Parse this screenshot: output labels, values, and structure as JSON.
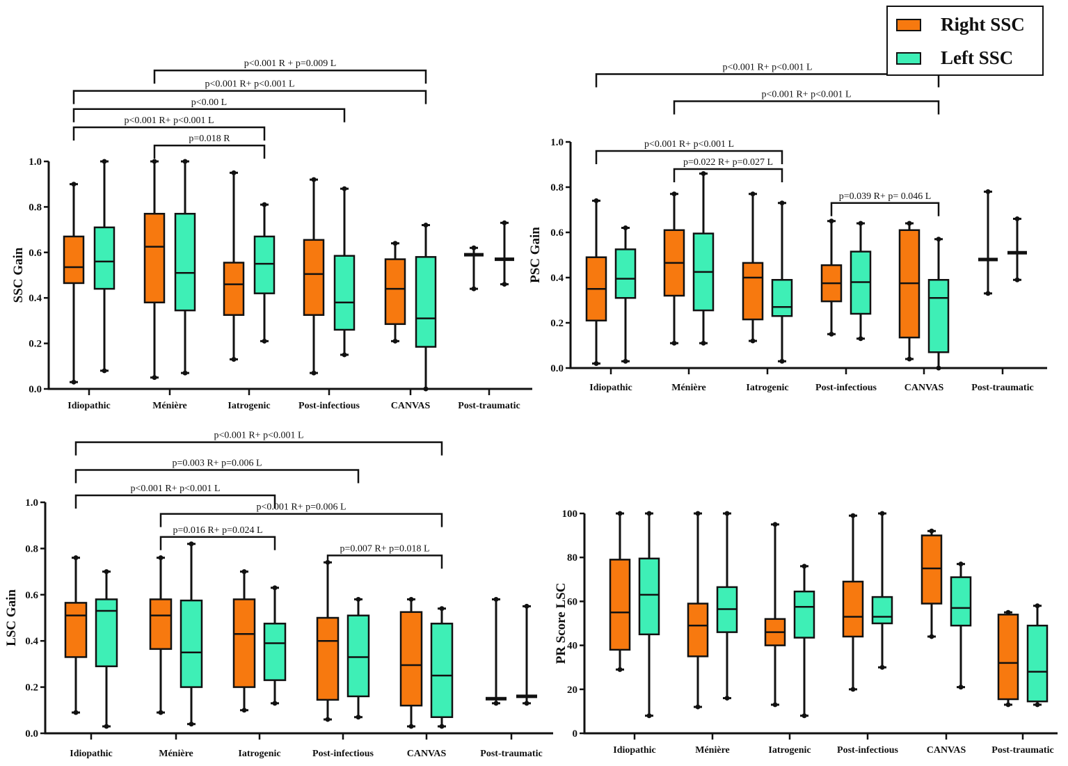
{
  "legend": {
    "right_label": "Right SSC",
    "left_label": "Left SSC"
  },
  "colors": {
    "right": "#f7790f",
    "left": "#3eefb6",
    "stroke": "#111111"
  },
  "chart_data": [
    {
      "type": "box",
      "ylabel": "SSC Gain",
      "ylim": [
        0,
        1.0
      ],
      "yticks": [
        "0.0",
        "0.2",
        "0.4",
        "0.6",
        "0.8",
        "1.0"
      ],
      "categories": [
        "Idiopathic",
        "Ménière",
        "Iatrogenic",
        "Post-infectious",
        "CANVAS",
        "Post-traumatic"
      ],
      "series": [
        {
          "name": "Right SSC",
          "boxes": [
            [
              0.03,
              0.465,
              0.535,
              0.67,
              0.9
            ],
            [
              0.05,
              0.38,
              0.625,
              0.77,
              1.0
            ],
            [
              0.13,
              0.325,
              0.46,
              0.555,
              0.95
            ],
            [
              0.07,
              0.325,
              0.505,
              0.655,
              0.92
            ],
            [
              0.21,
              0.285,
              0.44,
              0.57,
              0.64
            ],
            [
              0.44,
              0.59,
              0.59,
              0.59,
              0.62
            ]
          ]
        },
        {
          "name": "Left SSC",
          "boxes": [
            [
              0.08,
              0.44,
              0.56,
              0.71,
              1.0
            ],
            [
              0.07,
              0.345,
              0.51,
              0.77,
              1.0
            ],
            [
              0.21,
              0.42,
              0.55,
              0.67,
              0.81
            ],
            [
              0.15,
              0.26,
              0.38,
              0.585,
              0.88
            ],
            [
              0.0,
              0.185,
              0.31,
              0.58,
              0.72
            ],
            [
              0.46,
              0.57,
              0.57,
              0.57,
              0.73
            ]
          ]
        }
      ],
      "brackets": [
        {
          "label": "p<0.001 R + p=0.009 L",
          "from": 1,
          "from_side": "Right",
          "to": 4,
          "to_side": "Left",
          "level": 1.4
        },
        {
          "label": "p<0.001 R+ p<0.001 L",
          "from": 0,
          "from_side": "Right",
          "to": 4,
          "to_side": "Left",
          "level": 1.31
        },
        {
          "label": "p<0.00 L",
          "from": 0,
          "from_side": "Right",
          "to": 3,
          "to_side": "Left",
          "level": 1.23
        },
        {
          "label": "p<0.001 R+ p<0.001 L",
          "from": 0,
          "from_side": "Right",
          "to": 2,
          "to_side": "Left",
          "level": 1.15
        },
        {
          "label": "p=0.018 R",
          "from": 1,
          "from_side": "Right",
          "to": 2,
          "to_side": "Left",
          "level": 1.07
        }
      ]
    },
    {
      "type": "box",
      "ylabel": "PSC Gain",
      "ylim": [
        0,
        1.0
      ],
      "yticks": [
        "0.0",
        "0.2",
        "0.4",
        "0.6",
        "0.8",
        "1.0"
      ],
      "categories": [
        "Idiopathic",
        "Ménière",
        "Iatrogenic",
        "Post-infectious",
        "CANVAS",
        "Post-traumatic"
      ],
      "series": [
        {
          "name": "Right SSC",
          "boxes": [
            [
              0.02,
              0.21,
              0.35,
              0.49,
              0.74
            ],
            [
              0.11,
              0.32,
              0.465,
              0.61,
              0.77
            ],
            [
              0.12,
              0.215,
              0.4,
              0.465,
              0.77
            ],
            [
              0.15,
              0.295,
              0.375,
              0.455,
              0.65
            ],
            [
              0.04,
              0.135,
              0.375,
              0.61,
              0.64
            ],
            [
              0.33,
              0.48,
              0.48,
              0.48,
              0.78
            ]
          ]
        },
        {
          "name": "Left SSC",
          "boxes": [
            [
              0.03,
              0.31,
              0.395,
              0.525,
              0.62
            ],
            [
              0.11,
              0.255,
              0.425,
              0.595,
              0.86
            ],
            [
              0.03,
              0.23,
              0.27,
              0.39,
              0.73
            ],
            [
              0.13,
              0.24,
              0.38,
              0.515,
              0.64
            ],
            [
              0.0,
              0.07,
              0.31,
              0.39,
              0.57
            ],
            [
              0.39,
              0.51,
              0.51,
              0.51,
              0.66
            ]
          ]
        }
      ],
      "brackets": [
        {
          "label": "p<0.001 R+ p<0.001 L",
          "from": 0,
          "from_side": "Right",
          "to": 4,
          "to_side": "Left",
          "level": 1.3
        },
        {
          "label": "p<0.001 R+ p<0.001 L",
          "from": 1,
          "from_side": "Right",
          "to": 4,
          "to_side": "Left",
          "level": 1.18
        },
        {
          "label": "p<0.001 R+ p<0.001 L",
          "from": 0,
          "from_side": "Right",
          "to": 2,
          "to_side": "Left",
          "level": 0.96
        },
        {
          "label": "p=0.022 R+ p=0.027 L",
          "from": 1,
          "from_side": "Right",
          "to": 2,
          "to_side": "Left",
          "level": 0.88
        },
        {
          "label": "p=0.039 R+ p= 0.046 L",
          "from": 3,
          "from_side": "Right",
          "to": 4,
          "to_side": "Left",
          "level": 0.73
        }
      ]
    },
    {
      "type": "box",
      "ylabel": "LSC Gain",
      "ylim": [
        0,
        1.0
      ],
      "yticks": [
        "0.0",
        "0.2",
        "0.4",
        "0.6",
        "0.8",
        "1.0"
      ],
      "categories": [
        "Idiopathic",
        "Ménière",
        "Iatrogenic",
        "Post-infectious",
        "CANVAS",
        "Post-traumatic"
      ],
      "series": [
        {
          "name": "Right SSC",
          "boxes": [
            [
              0.09,
              0.33,
              0.51,
              0.565,
              0.76
            ],
            [
              0.09,
              0.365,
              0.51,
              0.58,
              0.76
            ],
            [
              0.1,
              0.2,
              0.43,
              0.58,
              0.7
            ],
            [
              0.06,
              0.145,
              0.4,
              0.5,
              0.74
            ],
            [
              0.03,
              0.12,
              0.295,
              0.525,
              0.58
            ],
            [
              0.13,
              0.15,
              0.15,
              0.15,
              0.58
            ]
          ]
        },
        {
          "name": "Left SSC",
          "boxes": [
            [
              0.03,
              0.29,
              0.53,
              0.58,
              0.7
            ],
            [
              0.04,
              0.2,
              0.35,
              0.575,
              0.82
            ],
            [
              0.13,
              0.23,
              0.39,
              0.475,
              0.63
            ],
            [
              0.07,
              0.16,
              0.33,
              0.51,
              0.58
            ],
            [
              0.03,
              0.07,
              0.25,
              0.475,
              0.54
            ],
            [
              0.13,
              0.16,
              0.16,
              0.16,
              0.55
            ]
          ]
        }
      ],
      "brackets": [
        {
          "label": "p<0.001 R+ p<0.001 L",
          "from": 0,
          "from_side": "Right",
          "to": 4,
          "to_side": "Left",
          "level": 1.26
        },
        {
          "label": "p=0.003 R+ p=0.006 L",
          "from": 0,
          "from_side": "Right",
          "to": 3,
          "to_side": "Left",
          "level": 1.14
        },
        {
          "label": "p<0.001 R+ p<0.001 L",
          "from": 0,
          "from_side": "Right",
          "to": 2,
          "to_side": "Left",
          "level": 1.03
        },
        {
          "label": "p<0.001 R+ p=0.006 L",
          "from": 1,
          "from_side": "Right",
          "to": 4,
          "to_side": "Left",
          "level": 0.95
        },
        {
          "label": "p=0.016  R+ p=0.024 L",
          "from": 1,
          "from_side": "Right",
          "to": 2,
          "to_side": "Left",
          "level": 0.85
        },
        {
          "label": "p=0.007 R+ p=0.018 L",
          "from": 3,
          "from_side": "Right",
          "to": 4,
          "to_side": "Left",
          "level": 0.77
        }
      ]
    },
    {
      "type": "box",
      "ylabel": "PR Score LSC",
      "ylim": [
        0,
        100
      ],
      "yticks": [
        "0",
        "20",
        "40",
        "60",
        "80",
        "100"
      ],
      "categories": [
        "Idiopathic",
        "Ménière",
        "Iatrogenic",
        "Post-infectious",
        "CANVAS",
        "Post-traumatic"
      ],
      "series": [
        {
          "name": "Right SSC",
          "boxes": [
            [
              29,
              38,
              55,
              79,
              100
            ],
            [
              12,
              35,
              49,
              59,
              100
            ],
            [
              13,
              40,
              46,
              52,
              95
            ],
            [
              20,
              44,
              53,
              69,
              99
            ],
            [
              44,
              59,
              75,
              90,
              92
            ],
            [
              13,
              15.5,
              32,
              54,
              55
            ]
          ]
        },
        {
          "name": "Left SSC",
          "boxes": [
            [
              8,
              45,
              63,
              79.5,
              100
            ],
            [
              16,
              46,
              56.5,
              66.5,
              100
            ],
            [
              8,
              43.5,
              57.5,
              64.5,
              76
            ],
            [
              30,
              50,
              53,
              62,
              100
            ],
            [
              21,
              49,
              57,
              71,
              77
            ],
            [
              13,
              14.5,
              28,
              49,
              58
            ]
          ]
        }
      ],
      "brackets": []
    }
  ]
}
